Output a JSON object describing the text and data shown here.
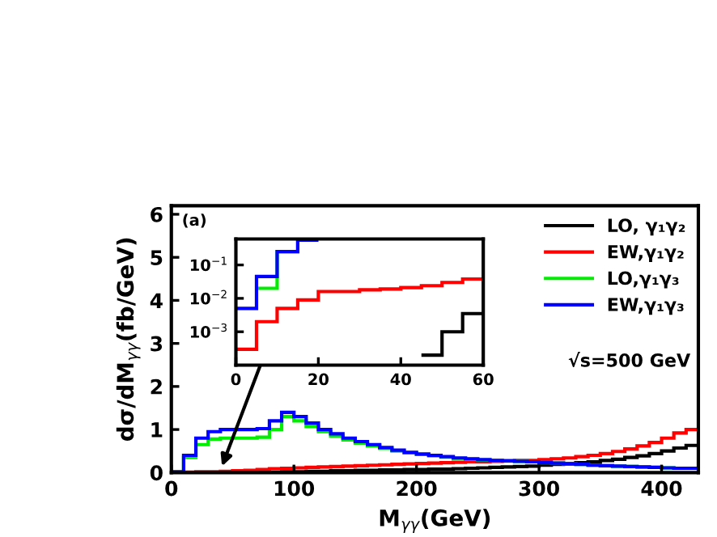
{
  "chart_data": [
    {
      "type": "histogram",
      "xlabel": "M$_{γγ}$(GeV)",
      "ylabel": "dσ/dM$_{γγ}$(fb/GeV)",
      "xlim": [
        0,
        430
      ],
      "ylim": [
        0,
        6.2
      ],
      "xticks": [
        0,
        100,
        200,
        300,
        400
      ],
      "yticks": [
        0,
        1,
        2,
        3,
        4,
        5,
        6
      ],
      "grid": false,
      "legend": "top right",
      "annotations": [
        "(a)",
        "√s=500 GeV"
      ],
      "bins": [
        0,
        10,
        20,
        30,
        40,
        50,
        60,
        70,
        80,
        90,
        100,
        110,
        120,
        130,
        140,
        150,
        160,
        170,
        180,
        190,
        200,
        210,
        220,
        230,
        240,
        250,
        260,
        270,
        280,
        290,
        300,
        310,
        320,
        330,
        340,
        350,
        360,
        370,
        380,
        390,
        400,
        410,
        420,
        430
      ],
      "series": [
        {
          "name": "LO, γ₁γ₂",
          "color": "#000000",
          "values": [
            0,
            0,
            0,
            0,
            0,
            0,
            0,
            0.01,
            0.01,
            0.02,
            0.02,
            0.03,
            0.03,
            0.04,
            0.04,
            0.05,
            0.05,
            0.06,
            0.06,
            0.07,
            0.07,
            0.08,
            0.08,
            0.09,
            0.1,
            0.11,
            0.12,
            0.13,
            0.14,
            0.15,
            0.17,
            0.19,
            0.21,
            0.23,
            0.25,
            0.28,
            0.31,
            0.35,
            0.39,
            0.44,
            0.5,
            0.57,
            0.63
          ]
        },
        {
          "name": "EW,γ₁γ₂",
          "color": "#ff0000",
          "values": [
            0,
            0.01,
            0.02,
            0.02,
            0.03,
            0.04,
            0.05,
            0.07,
            0.09,
            0.1,
            0.11,
            0.12,
            0.13,
            0.14,
            0.15,
            0.16,
            0.17,
            0.18,
            0.19,
            0.2,
            0.21,
            0.22,
            0.23,
            0.24,
            0.25,
            0.25,
            0.26,
            0.27,
            0.28,
            0.28,
            0.3,
            0.32,
            0.34,
            0.37,
            0.4,
            0.44,
            0.49,
            0.55,
            0.62,
            0.7,
            0.8,
            0.92,
            1.0
          ]
        },
        {
          "name": "LO,γ₁γ₃",
          "color": "#00ee00",
          "values": [
            0.01,
            0.35,
            0.65,
            0.78,
            0.8,
            0.8,
            0.8,
            0.82,
            1.0,
            1.3,
            1.2,
            1.07,
            0.95,
            0.85,
            0.76,
            0.68,
            0.62,
            0.56,
            0.5,
            0.46,
            0.42,
            0.39,
            0.36,
            0.33,
            0.31,
            0.29,
            0.28,
            0.27,
            0.26,
            0.25,
            0.23,
            0.22,
            0.2,
            0.19,
            0.17,
            0.16,
            0.15,
            0.14,
            0.13,
            0.12,
            0.11,
            0.1,
            0.1
          ]
        },
        {
          "name": "EW,γ₁γ₃",
          "color": "#0000ff",
          "values": [
            0.02,
            0.4,
            0.8,
            0.95,
            1.0,
            1.0,
            1.0,
            1.02,
            1.2,
            1.4,
            1.3,
            1.15,
            1.0,
            0.9,
            0.8,
            0.72,
            0.65,
            0.58,
            0.52,
            0.47,
            0.43,
            0.4,
            0.37,
            0.34,
            0.32,
            0.3,
            0.28,
            0.27,
            0.26,
            0.25,
            0.23,
            0.22,
            0.2,
            0.19,
            0.17,
            0.16,
            0.15,
            0.14,
            0.13,
            0.12,
            0.11,
            0.1,
            0.1
          ]
        }
      ]
    },
    {
      "type": "histogram",
      "log": true,
      "xlim": [
        0,
        60
      ],
      "ylim": [
        0.0001,
        0.6
      ],
      "xticks": [
        0,
        20,
        40,
        60
      ],
      "yticks": [
        {
          "value": 0.001,
          "label": "10$^{−3}$"
        },
        {
          "value": 0.01,
          "label": "10$^{−2}$"
        },
        {
          "value": 0.1,
          "label": "10$^{−1}$"
        }
      ],
      "grid": false,
      "bins": [
        0,
        5,
        10,
        15,
        20,
        25,
        30,
        35,
        40,
        45,
        50,
        55,
        60
      ],
      "series": [
        {
          "color": "#000000",
          "bins": [
            45,
            50,
            55,
            60
          ],
          "values": [
            0.0002,
            0.001,
            0.0035
          ]
        },
        {
          "color": "#ff0000",
          "values": [
            0.0003,
            0.002,
            0.005,
            0.009,
            0.016,
            0.016,
            0.018,
            0.019,
            0.021,
            0.024,
            0.03,
            0.038
          ]
        },
        {
          "color": "#00ee00",
          "bins": [
            5,
            10,
            15,
            20
          ],
          "values": [
            0.02,
            0.25,
            0.55
          ]
        },
        {
          "color": "#0000ff",
          "bins": [
            0,
            5,
            10,
            15,
            20
          ],
          "values": [
            0.005,
            0.045,
            0.25,
            0.55
          ]
        }
      ]
    }
  ]
}
